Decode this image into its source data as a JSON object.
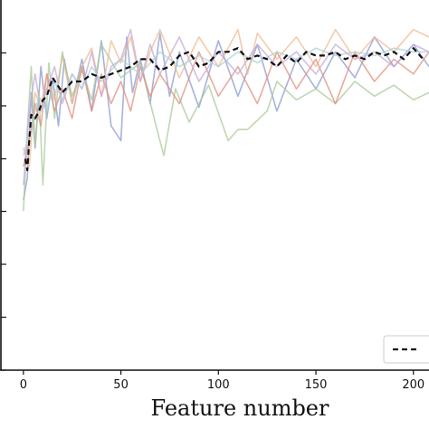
{
  "chart_data": {
    "type": "line",
    "xlabel": "Feature number",
    "ylabel": "",
    "title": "",
    "xlim": [
      -12,
      208
    ],
    "ylim": [
      0,
      1
    ],
    "x_ticks": [
      0,
      50,
      100,
      150,
      200
    ],
    "x_tick_labels": [
      "0",
      "50",
      "100",
      "150",
      "200"
    ],
    "y_ticks": [
      0.0,
      0.143,
      0.286,
      0.429,
      0.571,
      0.714,
      0.857
    ],
    "grid": false,
    "legend": {
      "placement": "bottom-right",
      "entries": [
        {
          "series": "mean",
          "label": ""
        }
      ]
    },
    "series": [
      {
        "id": "mean",
        "color": "#111111",
        "style": "dashed",
        "x": [
          1,
          2,
          3,
          4,
          6,
          8,
          10,
          12,
          15,
          20,
          25,
          30,
          35,
          40,
          45,
          50,
          55,
          60,
          65,
          70,
          75,
          80,
          85,
          90,
          95,
          100,
          105,
          110,
          115,
          120,
          125,
          130,
          135,
          140,
          145,
          150,
          155,
          160,
          165,
          170,
          175,
          180,
          185,
          190,
          195,
          200,
          205
        ],
        "y": [
          0.571,
          0.54,
          0.62,
          0.69,
          0.68,
          0.7,
          0.73,
          0.74,
          0.79,
          0.75,
          0.78,
          0.78,
          0.8,
          0.79,
          0.8,
          0.81,
          0.82,
          0.84,
          0.84,
          0.81,
          0.82,
          0.85,
          0.86,
          0.82,
          0.83,
          0.86,
          0.86,
          0.87,
          0.84,
          0.85,
          0.84,
          0.82,
          0.85,
          0.83,
          0.86,
          0.85,
          0.85,
          0.86,
          0.84,
          0.85,
          0.84,
          0.86,
          0.85,
          0.86,
          0.84,
          0.87,
          0.84
        ]
      },
      {
        "id": "run-blue",
        "color": "#8a9ad2",
        "style": "solid",
        "x": [
          0,
          2,
          4,
          6,
          9,
          12,
          15,
          18,
          21,
          25,
          30,
          35,
          40,
          45,
          50,
          53,
          56,
          60,
          65,
          70,
          75,
          80,
          90,
          100,
          110,
          120,
          130,
          140,
          150,
          160,
          170,
          180,
          190,
          200,
          208
        ],
        "y": [
          0.46,
          0.52,
          0.75,
          0.6,
          0.82,
          0.68,
          0.79,
          0.66,
          0.84,
          0.72,
          0.84,
          0.7,
          0.89,
          0.66,
          0.62,
          0.9,
          0.75,
          0.84,
          0.72,
          0.91,
          0.74,
          0.86,
          0.71,
          0.89,
          0.74,
          0.88,
          0.7,
          0.84,
          0.76,
          0.86,
          0.79,
          0.9,
          0.82,
          0.88,
          0.82
        ]
      },
      {
        "id": "run-orange",
        "color": "#f2b98e",
        "style": "solid",
        "x": [
          0,
          3,
          6,
          9,
          12,
          16,
          20,
          25,
          30,
          35,
          40,
          45,
          50,
          55,
          60,
          65,
          70,
          80,
          90,
          100,
          110,
          115,
          120,
          130,
          140,
          150,
          160,
          170,
          180,
          190,
          200,
          208
        ],
        "y": [
          0.6,
          0.55,
          0.75,
          0.71,
          0.8,
          0.73,
          0.85,
          0.72,
          0.82,
          0.87,
          0.74,
          0.89,
          0.83,
          0.9,
          0.78,
          0.86,
          0.92,
          0.79,
          0.9,
          0.82,
          0.92,
          0.8,
          0.91,
          0.84,
          0.9,
          0.82,
          0.92,
          0.84,
          0.9,
          0.86,
          0.92,
          0.9
        ]
      },
      {
        "id": "run-green",
        "color": "#a9c99a",
        "style": "solid",
        "x": [
          0,
          2,
          4,
          6,
          8,
          10,
          13,
          16,
          20,
          25,
          30,
          35,
          40,
          50,
          60,
          68,
          72,
          78,
          85,
          95,
          105,
          110,
          115,
          125,
          130,
          140,
          150,
          160,
          170,
          180,
          190,
          200,
          208
        ],
        "y": [
          0.43,
          0.65,
          0.82,
          0.6,
          0.75,
          0.5,
          0.83,
          0.68,
          0.86,
          0.74,
          0.81,
          0.73,
          0.88,
          0.79,
          0.83,
          0.66,
          0.58,
          0.76,
          0.67,
          0.77,
          0.62,
          0.65,
          0.65,
          0.7,
          0.78,
          0.73,
          0.76,
          0.72,
          0.78,
          0.74,
          0.77,
          0.73,
          0.75
        ]
      },
      {
        "id": "run-red",
        "color": "#e0907e",
        "style": "solid",
        "x": [
          0,
          3,
          6,
          9,
          12,
          16,
          20,
          25,
          30,
          35,
          40,
          45,
          50,
          55,
          60,
          65,
          70,
          80,
          90,
          100,
          110,
          120,
          130,
          140,
          150,
          160,
          170,
          180,
          190,
          200,
          208
        ],
        "y": [
          0.55,
          0.62,
          0.72,
          0.66,
          0.8,
          0.7,
          0.76,
          0.68,
          0.82,
          0.7,
          0.8,
          0.72,
          0.78,
          0.7,
          0.82,
          0.74,
          0.8,
          0.72,
          0.86,
          0.74,
          0.82,
          0.72,
          0.86,
          0.76,
          0.84,
          0.72,
          0.86,
          0.78,
          0.84,
          0.8,
          0.86
        ]
      },
      {
        "id": "run-purple",
        "color": "#c7a9d8",
        "style": "solid",
        "x": [
          0,
          3,
          6,
          9,
          12,
          16,
          20,
          25,
          30,
          35,
          40,
          45,
          50,
          55,
          60,
          65,
          70,
          80,
          90,
          100,
          110,
          120,
          130,
          140,
          150,
          160,
          170,
          180,
          190,
          200,
          208
        ],
        "y": [
          0.5,
          0.7,
          0.8,
          0.7,
          0.76,
          0.82,
          0.72,
          0.8,
          0.76,
          0.86,
          0.74,
          0.82,
          0.84,
          0.92,
          0.78,
          0.88,
          0.8,
          0.9,
          0.78,
          0.86,
          0.8,
          0.88,
          0.82,
          0.86,
          0.8,
          0.88,
          0.84,
          0.86,
          0.82,
          0.88,
          0.86
        ]
      },
      {
        "id": "run-teal",
        "color": "#a9d2d8",
        "style": "solid",
        "x": [
          0,
          4,
          8,
          12,
          16,
          20,
          25,
          30,
          35,
          40,
          50,
          60,
          70,
          80,
          90,
          100,
          110,
          120,
          130,
          140,
          150,
          160,
          170,
          180,
          190,
          200,
          208
        ],
        "y": [
          0.58,
          0.66,
          0.74,
          0.7,
          0.78,
          0.73,
          0.8,
          0.76,
          0.82,
          0.78,
          0.84,
          0.8,
          0.86,
          0.82,
          0.85,
          0.82,
          0.86,
          0.83,
          0.86,
          0.84,
          0.87,
          0.85,
          0.86,
          0.85,
          0.87,
          0.86,
          0.86
        ]
      }
    ]
  }
}
